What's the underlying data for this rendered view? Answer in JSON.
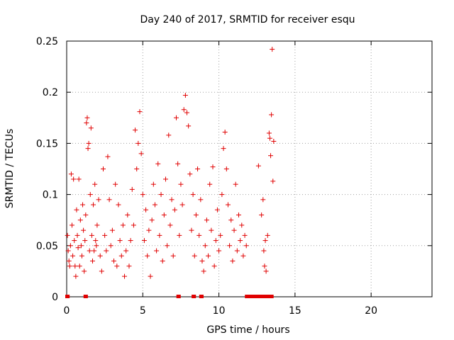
{
  "chart_data": {
    "type": "scatter",
    "title": "Day 240 of 2017, SRMTID for receiver esqu",
    "xlabel": "GPS time / hours",
    "ylabel": "SRMTID / TECUs",
    "xlim": [
      0,
      24
    ],
    "ylim": [
      0,
      0.25
    ],
    "xticks": [
      0,
      5,
      10,
      15,
      20
    ],
    "xtick_labels": [
      "0",
      "5",
      "10",
      "15",
      "20"
    ],
    "yticks": [
      0,
      0.05,
      0.1,
      0.15,
      0.2,
      0.25
    ],
    "ytick_labels": [
      "0",
      "0.05",
      "0.1",
      "0.15",
      "0.2",
      "0.25"
    ],
    "grid": true,
    "marker": "+",
    "color": "#e00000",
    "series": [
      {
        "name": "SRMTID",
        "points": [
          [
            0.05,
            0.06
          ],
          [
            0.1,
            0.045
          ],
          [
            0.15,
            0.035
          ],
          [
            0.2,
            0.03
          ],
          [
            0.25,
            0.05
          ],
          [
            0.3,
            0.12
          ],
          [
            0.35,
            0.07
          ],
          [
            0.4,
            0.04
          ],
          [
            0.45,
            0.115
          ],
          [
            0.5,
            0.055
          ],
          [
            0.55,
            0.03
          ],
          [
            0.6,
            0.02
          ],
          [
            0.65,
            0.085
          ],
          [
            0.7,
            0.06
          ],
          [
            0.75,
            0.048
          ],
          [
            0.8,
            0.115
          ],
          [
            0.85,
            0.03
          ],
          [
            0.9,
            0.075
          ],
          [
            0.95,
            0.05
          ],
          [
            1.0,
            0.04
          ],
          [
            1.05,
            0.09
          ],
          [
            1.1,
            0.065
          ],
          [
            1.15,
            0.025
          ],
          [
            1.2,
            0.055
          ],
          [
            1.25,
            0.08
          ],
          [
            1.3,
            0.17
          ],
          [
            1.35,
            0.175
          ],
          [
            1.4,
            0.145
          ],
          [
            1.45,
            0.15
          ],
          [
            1.5,
            0.045
          ],
          [
            1.55,
            0.1
          ],
          [
            1.6,
            0.165
          ],
          [
            1.65,
            0.06
          ],
          [
            1.7,
            0.035
          ],
          [
            1.75,
            0.09
          ],
          [
            1.8,
            0.045
          ],
          [
            1.85,
            0.11
          ],
          [
            1.9,
            0.055
          ],
          [
            1.95,
            0.05
          ],
          [
            2.0,
            0.07
          ],
          [
            2.1,
            0.095
          ],
          [
            2.2,
            0.04
          ],
          [
            2.3,
            0.025
          ],
          [
            2.4,
            0.125
          ],
          [
            2.5,
            0.06
          ],
          [
            2.6,
            0.045
          ],
          [
            2.7,
            0.137
          ],
          [
            2.8,
            0.095
          ],
          [
            2.9,
            0.05
          ],
          [
            3.0,
            0.065
          ],
          [
            3.1,
            0.035
          ],
          [
            3.2,
            0.11
          ],
          [
            3.3,
            0.03
          ],
          [
            3.4,
            0.09
          ],
          [
            3.5,
            0.055
          ],
          [
            3.6,
            0.04
          ],
          [
            3.7,
            0.07
          ],
          [
            3.8,
            0.02
          ],
          [
            3.9,
            0.045
          ],
          [
            4.0,
            0.08
          ],
          [
            4.1,
            0.03
          ],
          [
            4.2,
            0.055
          ],
          [
            4.3,
            0.105
          ],
          [
            4.4,
            0.07
          ],
          [
            4.5,
            0.163
          ],
          [
            4.6,
            0.125
          ],
          [
            4.7,
            0.15
          ],
          [
            4.8,
            0.181
          ],
          [
            4.9,
            0.14
          ],
          [
            5.0,
            0.1
          ],
          [
            5.1,
            0.055
          ],
          [
            5.2,
            0.085
          ],
          [
            5.3,
            0.04
          ],
          [
            5.4,
            0.065
          ],
          [
            5.5,
            0.02
          ],
          [
            5.6,
            0.075
          ],
          [
            5.7,
            0.11
          ],
          [
            5.8,
            0.09
          ],
          [
            5.9,
            0.045
          ],
          [
            6.0,
            0.13
          ],
          [
            6.1,
            0.06
          ],
          [
            6.2,
            0.1
          ],
          [
            6.3,
            0.035
          ],
          [
            6.4,
            0.08
          ],
          [
            6.5,
            0.115
          ],
          [
            6.6,
            0.05
          ],
          [
            6.7,
            0.158
          ],
          [
            6.8,
            0.07
          ],
          [
            6.9,
            0.095
          ],
          [
            7.0,
            0.04
          ],
          [
            7.1,
            0.085
          ],
          [
            7.2,
            0.175
          ],
          [
            7.3,
            0.13
          ],
          [
            7.4,
            0.06
          ],
          [
            7.5,
            0.11
          ],
          [
            7.6,
            0.09
          ],
          [
            7.7,
            0.183
          ],
          [
            7.8,
            0.197
          ],
          [
            7.9,
            0.18
          ],
          [
            8.0,
            0.167
          ],
          [
            8.1,
            0.12
          ],
          [
            8.2,
            0.065
          ],
          [
            8.3,
            0.1
          ],
          [
            8.4,
            0.04
          ],
          [
            8.5,
            0.08
          ],
          [
            8.6,
            0.125
          ],
          [
            8.7,
            0.06
          ],
          [
            8.8,
            0.095
          ],
          [
            8.9,
            0.035
          ],
          [
            9.0,
            0.025
          ],
          [
            9.1,
            0.05
          ],
          [
            9.2,
            0.075
          ],
          [
            9.3,
            0.04
          ],
          [
            9.4,
            0.11
          ],
          [
            9.5,
            0.065
          ],
          [
            9.6,
            0.127
          ],
          [
            9.7,
            0.03
          ],
          [
            9.8,
            0.055
          ],
          [
            9.9,
            0.085
          ],
          [
            10.0,
            0.045
          ],
          [
            10.1,
            0.06
          ],
          [
            10.2,
            0.1
          ],
          [
            10.3,
            0.145
          ],
          [
            10.4,
            0.161
          ],
          [
            10.5,
            0.125
          ],
          [
            10.6,
            0.09
          ],
          [
            10.7,
            0.05
          ],
          [
            10.8,
            0.075
          ],
          [
            10.9,
            0.035
          ],
          [
            11.0,
            0.065
          ],
          [
            11.1,
            0.11
          ],
          [
            11.2,
            0.045
          ],
          [
            11.3,
            0.08
          ],
          [
            11.4,
            0.055
          ],
          [
            11.5,
            0.07
          ],
          [
            11.6,
            0.04
          ],
          [
            11.7,
            0.06
          ],
          [
            11.8,
            0.05
          ],
          [
            12.6,
            0.128
          ],
          [
            12.8,
            0.08
          ],
          [
            12.9,
            0.095
          ],
          [
            12.95,
            0.045
          ],
          [
            13.0,
            0.03
          ],
          [
            13.05,
            0.055
          ],
          [
            13.1,
            0.025
          ],
          [
            13.2,
            0.06
          ],
          [
            13.3,
            0.16
          ],
          [
            13.35,
            0.155
          ],
          [
            13.4,
            0.138
          ],
          [
            13.45,
            0.178
          ],
          [
            13.5,
            0.242
          ],
          [
            13.55,
            0.113
          ],
          [
            13.6,
            0.152
          ]
        ]
      }
    ],
    "zero_segments": [
      [
        0.0,
        0.1
      ],
      [
        1.2,
        1.3
      ],
      [
        7.3,
        7.4
      ],
      [
        8.3,
        8.4
      ],
      [
        8.8,
        8.9
      ],
      [
        11.8,
        13.5
      ]
    ]
  }
}
